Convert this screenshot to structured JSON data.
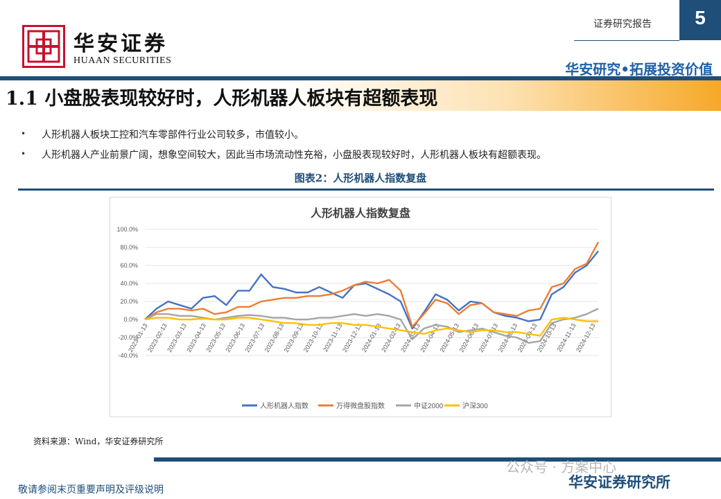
{
  "header": {
    "logo_text_cn": "华安证券",
    "logo_text_en": "HUAAN SECURITIES",
    "report_label": "证券研究报告",
    "page_number": "5",
    "slogan": "华安研究•拓展投资价值"
  },
  "section": {
    "title": "1.1 小盘股表现较好时，人形机器人板块有超额表现",
    "bullets": [
      "人形机器人板块工控和汽车零部件行业公司较多，市值较小。",
      "人形机器人产业前景广阔，想象空间较大，因此当市场流动性充裕，小盘股表现较好时，人形机器人板块有超额表现。"
    ]
  },
  "figure_caption": "图表2：人形机器人指数复盘",
  "source": "资料来源：Wind，华安证券研究所",
  "footer": {
    "disclaimer": "敬请参阅末页重要声明及评级说明",
    "brand": "华安证券研究所",
    "watermark": "公众号 · 方案中心"
  },
  "colors": {
    "brand_blue": "#1f4e79",
    "logo_red": "#c8102e",
    "accent_orange": "#f6a828"
  },
  "chart_data": {
    "type": "line",
    "title": "人形机器人指数复盘",
    "x_ticks": [
      "2023-01-13",
      "2023-02-13",
      "2023-03-13",
      "2023-04-13",
      "2023-05-13",
      "2023-06-13",
      "2023-07-13",
      "2023-08-13",
      "2023-09-13",
      "2023-10-13",
      "2023-11-13",
      "2023-12-13",
      "2024-01-13",
      "2024-02-13",
      "2024-03-13",
      "2024-04-13",
      "2024-05-13",
      "2024-06-13",
      "2024-07-13",
      "2024-08-13",
      "2024-09-13",
      "2024-10-13",
      "2024-11-13",
      "2024-12-13"
    ],
    "y_ticks": [
      "100.0%",
      "80.0%",
      "60.0%",
      "40.0%",
      "20.0%",
      "0.0%",
      "-20.0%",
      "-40.0%"
    ],
    "ylim": [
      -40,
      100
    ],
    "y_unit": "%",
    "grid": true,
    "legend_position": "bottom",
    "series": [
      {
        "name": "人形机器人指数",
        "color": "#4472c4",
        "values": [
          0,
          12,
          20,
          16,
          12,
          24,
          26,
          16,
          32,
          32,
          50,
          36,
          34,
          30,
          30,
          36,
          30,
          24,
          38,
          40,
          34,
          28,
          20,
          -10,
          8,
          28,
          22,
          10,
          20,
          18,
          8,
          4,
          2,
          -2,
          0,
          28,
          36,
          52,
          60,
          76
        ]
      },
      {
        "name": "万得微盘股指数",
        "color": "#ed7d31",
        "values": [
          0,
          8,
          12,
          12,
          10,
          12,
          6,
          8,
          14,
          14,
          20,
          22,
          24,
          24,
          26,
          26,
          28,
          32,
          38,
          42,
          40,
          44,
          32,
          -8,
          6,
          22,
          18,
          6,
          16,
          18,
          8,
          6,
          4,
          10,
          12,
          36,
          40,
          56,
          62,
          86
        ]
      },
      {
        "name": "中证2000",
        "color": "#a5a5a5",
        "values": [
          0,
          6,
          6,
          4,
          4,
          2,
          0,
          2,
          4,
          5,
          4,
          2,
          2,
          0,
          0,
          2,
          2,
          4,
          6,
          4,
          6,
          4,
          0,
          -22,
          -10,
          -6,
          -8,
          -14,
          -12,
          -10,
          -14,
          -18,
          -20,
          -26,
          -24,
          -4,
          0,
          2,
          6,
          12
        ]
      },
      {
        "name": "沪深300",
        "color": "#ffc000",
        "values": [
          0,
          2,
          2,
          0,
          0,
          1,
          0,
          0,
          2,
          2,
          0,
          -2,
          -4,
          -4,
          -6,
          -6,
          -4,
          -4,
          -6,
          -6,
          -8,
          -10,
          -12,
          -14,
          -16,
          -12,
          -10,
          -12,
          -14,
          -12,
          -12,
          -14,
          -14,
          -16,
          -18,
          0,
          2,
          0,
          -2,
          -2
        ]
      }
    ]
  }
}
